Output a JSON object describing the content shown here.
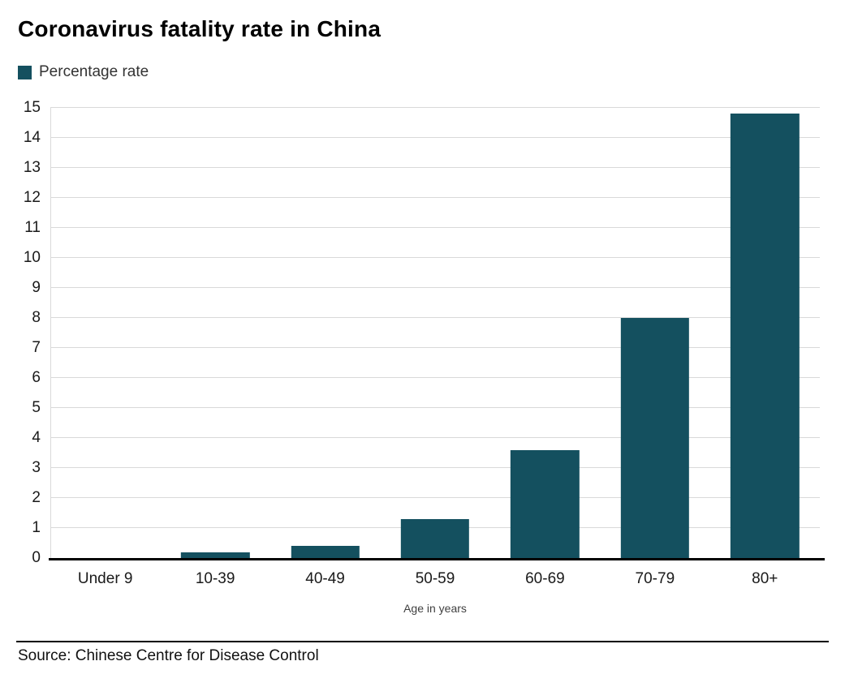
{
  "chart_data": {
    "type": "bar",
    "title": "Coronavirus fatality rate in China",
    "legend_label": "Percentage rate",
    "legend_position": "top-left",
    "categories": [
      "Under 9",
      "10-39",
      "40-49",
      "50-59",
      "60-69",
      "70-79",
      "80+"
    ],
    "values": [
      0,
      0.2,
      0.4,
      1.3,
      3.6,
      8.0,
      14.8
    ],
    "xlabel": "Age in years",
    "ylabel": "",
    "ylim": [
      0,
      15
    ],
    "ytick_step": 1,
    "grid": true,
    "bar_color": "#14505f",
    "grid_color": "#d9d9d9",
    "axis_color": "#000000",
    "source": "Source: Chinese Centre for Disease Control"
  }
}
